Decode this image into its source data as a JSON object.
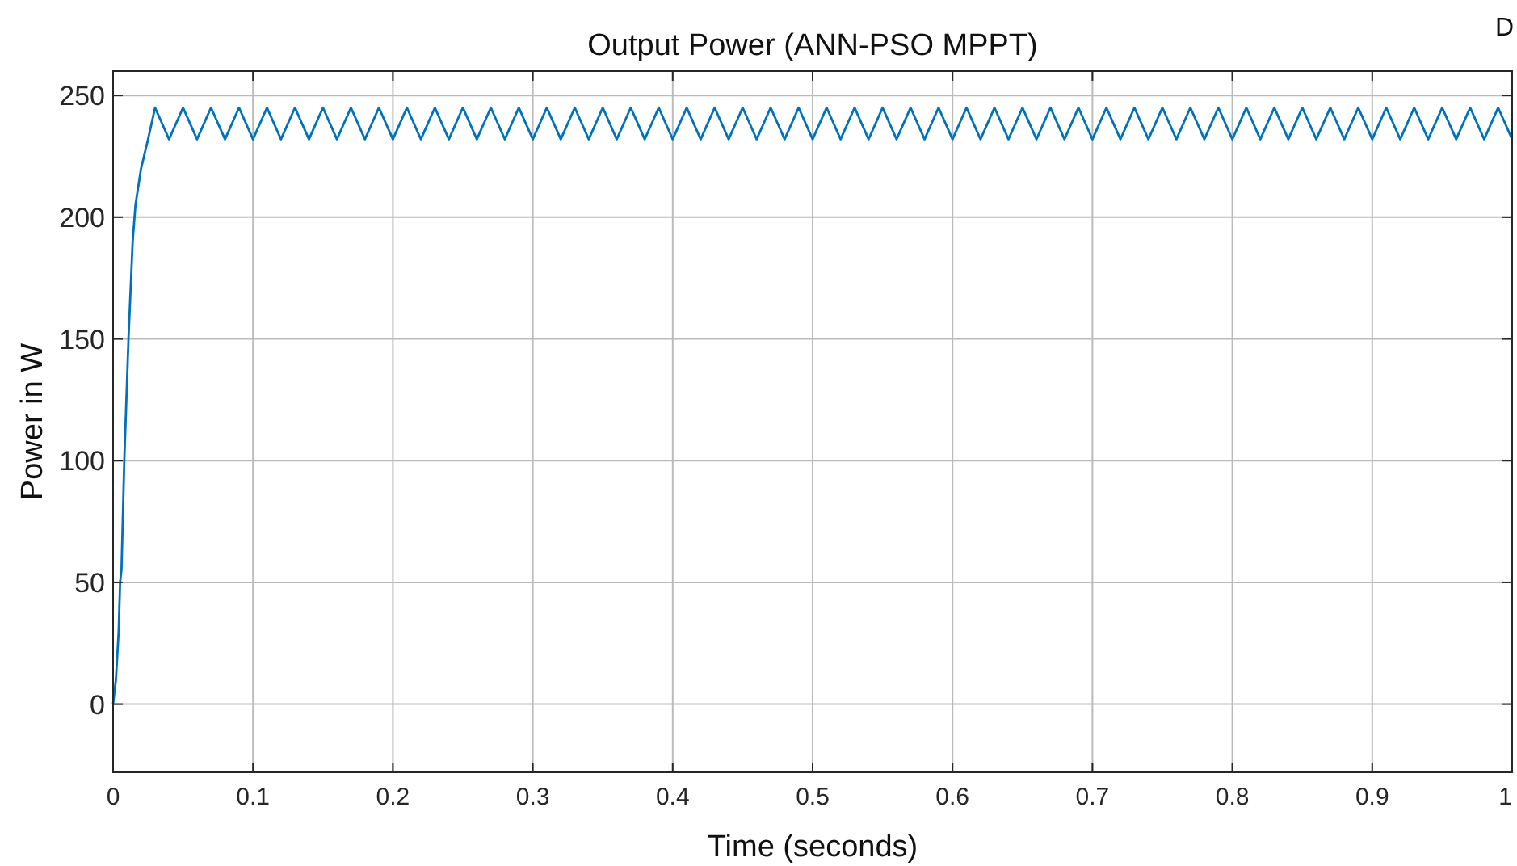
{
  "chart_data": {
    "type": "line",
    "title": "Output Power (ANN-PSO MPPT)",
    "xlabel": "Time (seconds)",
    "ylabel": "Power in W",
    "annotations": [
      "D"
    ],
    "xlim": [
      0,
      1
    ],
    "ylim": [
      -28,
      260
    ],
    "xticks": [
      0,
      0.1,
      0.2,
      0.3,
      0.4,
      0.5,
      0.6,
      0.7,
      0.8,
      0.9,
      1
    ],
    "yticks": [
      0,
      50,
      100,
      150,
      200,
      250
    ],
    "grid": true,
    "line_style": "solid",
    "series": [
      {
        "color": "#0072bd",
        "x": [
          0,
          0.002,
          0.004,
          0.005,
          0.006,
          0.008,
          0.011,
          0.014,
          0.016,
          0.02,
          0.025,
          0.03,
          0.04,
          0.05,
          0.06,
          0.07,
          0.08,
          0.09,
          0.1,
          0.11,
          0.12,
          0.13,
          0.14,
          0.15,
          0.16,
          0.17,
          0.18,
          0.19,
          0.2,
          0.21,
          0.22,
          0.23,
          0.24,
          0.25,
          0.26,
          0.27,
          0.28,
          0.29,
          0.3,
          0.31,
          0.32,
          0.33,
          0.34,
          0.35,
          0.36,
          0.37,
          0.38,
          0.39,
          0.4,
          0.41,
          0.42,
          0.43,
          0.44,
          0.45,
          0.46,
          0.47,
          0.48,
          0.49,
          0.5,
          0.51,
          0.52,
          0.53,
          0.54,
          0.55,
          0.56,
          0.57,
          0.58,
          0.59,
          0.6,
          0.61,
          0.62,
          0.63,
          0.64,
          0.65,
          0.66,
          0.67,
          0.68,
          0.69,
          0.7,
          0.71,
          0.72,
          0.73,
          0.74,
          0.75,
          0.76,
          0.77,
          0.78,
          0.79,
          0.8,
          0.81,
          0.82,
          0.83,
          0.84,
          0.85,
          0.86,
          0.87,
          0.88,
          0.89,
          0.9,
          0.91,
          0.92,
          0.93,
          0.94,
          0.95,
          0.96,
          0.97,
          0.98,
          0.99,
          1
        ],
        "values": [
          0,
          10,
          30,
          50,
          55,
          100,
          150,
          190,
          205,
          220,
          232,
          245,
          232,
          245,
          232,
          245,
          232,
          245,
          232,
          245,
          232,
          245,
          232,
          245,
          232,
          245,
          232,
          245,
          232,
          245,
          232,
          245,
          232,
          245,
          232,
          245,
          232,
          245,
          232,
          245,
          232,
          245,
          232,
          245,
          232,
          245,
          232,
          245,
          232,
          245,
          232,
          245,
          232,
          245,
          232,
          245,
          232,
          245,
          232,
          245,
          232,
          245,
          232,
          245,
          232,
          245,
          232,
          245,
          232,
          245,
          232,
          245,
          232,
          245,
          232,
          245,
          232,
          245,
          232,
          245,
          232,
          245,
          232,
          245,
          232,
          245,
          232,
          245,
          232,
          245,
          232,
          245,
          232,
          245,
          232,
          245,
          232,
          245,
          232,
          245,
          232,
          245,
          232,
          245,
          232,
          245,
          232,
          245,
          232
        ]
      }
    ]
  }
}
